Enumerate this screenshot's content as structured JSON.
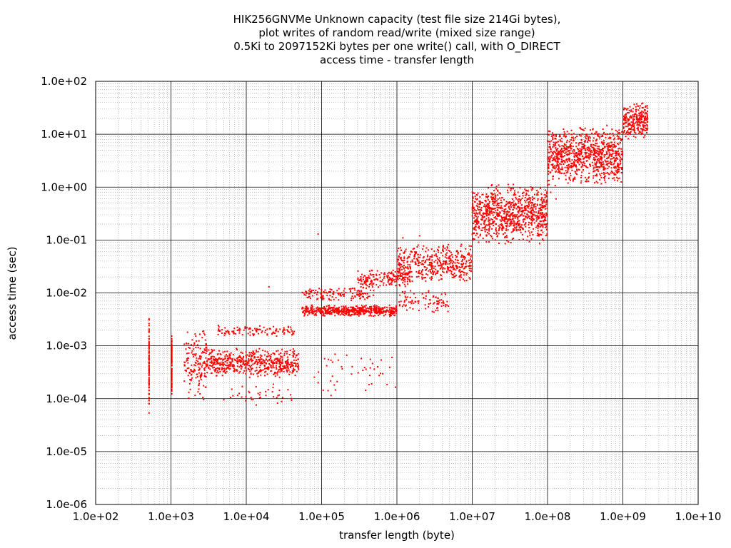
{
  "chart_data": {
    "type": "scatter",
    "title_lines": [
      "HIK256GNVMe Unknown capacity (test file size 214Gi bytes),",
      "plot writes of random read/write (mixed size range)",
      "0.5Ki to 2097152Ki bytes per one write() call, with O_DIRECT",
      "access time - transfer length"
    ],
    "xlabel": "transfer length (byte)",
    "ylabel": "access time (sec)",
    "x_scale": "log",
    "y_scale": "log",
    "xlim": [
      100,
      10000000000
    ],
    "ylim": [
      1e-06,
      100
    ],
    "x_ticks": [
      {
        "value": 100,
        "label": "1.0e+02"
      },
      {
        "value": 1000,
        "label": "1.0e+03"
      },
      {
        "value": 10000,
        "label": "1.0e+04"
      },
      {
        "value": 100000,
        "label": "1.0e+05"
      },
      {
        "value": 1000000,
        "label": "1.0e+06"
      },
      {
        "value": 10000000,
        "label": "1.0e+07"
      },
      {
        "value": 100000000,
        "label": "1.0e+08"
      },
      {
        "value": 1000000000,
        "label": "1.0e+09"
      },
      {
        "value": 10000000000,
        "label": "1.0e+10"
      }
    ],
    "y_ticks": [
      {
        "value": 100,
        "label": "1.0e+02"
      },
      {
        "value": 10,
        "label": "1.0e+01"
      },
      {
        "value": 1,
        "label": "1.0e+00"
      },
      {
        "value": 0.1,
        "label": "1.0e-01"
      },
      {
        "value": 0.01,
        "label": "1.0e-02"
      },
      {
        "value": 0.001,
        "label": "1.0e-03"
      },
      {
        "value": 0.0001,
        "label": "1.0e-04"
      },
      {
        "value": 1e-05,
        "label": "1.0e-05"
      },
      {
        "value": 1e-06,
        "label": "1.0e-06"
      }
    ],
    "grid": true,
    "point_color": "#ff0000",
    "clusters": [
      {
        "x_min": 512,
        "x_max": 512,
        "y_min": 5e-05,
        "y_max": 0.004,
        "count": 90
      },
      {
        "x_min": 1024,
        "x_max": 1024,
        "y_min": 9e-05,
        "y_max": 0.0024,
        "count": 90
      },
      {
        "x_min": 1500,
        "x_max": 3000,
        "y_min": 9e-05,
        "y_max": 0.0024,
        "count": 160
      },
      {
        "x_min": 3000,
        "x_max": 50000,
        "y_min": 0.00025,
        "y_max": 0.0009,
        "count": 560
      },
      {
        "x_min": 4000,
        "x_max": 45000,
        "y_min": 0.0015,
        "y_max": 0.0025,
        "count": 110
      },
      {
        "x_min": 5000,
        "x_max": 45000,
        "y_min": 7e-05,
        "y_max": 0.0002,
        "count": 40
      },
      {
        "x_min": 55000,
        "x_max": 1000000,
        "y_min": 0.0035,
        "y_max": 0.006,
        "count": 540
      },
      {
        "x_min": 55000,
        "x_max": 500000,
        "y_min": 0.007,
        "y_max": 0.013,
        "count": 130
      },
      {
        "x_min": 80000,
        "x_max": 1000000,
        "y_min": 0.0001,
        "y_max": 0.001,
        "count": 45
      },
      {
        "x_min": 300000,
        "x_max": 1500000,
        "y_min": 0.012,
        "y_max": 0.03,
        "count": 180
      },
      {
        "x_min": 1000000,
        "x_max": 5000000,
        "y_min": 0.004,
        "y_max": 0.012,
        "count": 90
      },
      {
        "x_min": 1000000,
        "x_max": 10000000,
        "y_min": 0.015,
        "y_max": 0.09,
        "count": 450
      },
      {
        "x_min": 10000000,
        "x_max": 100000000,
        "y_min": 0.08,
        "y_max": 1.2,
        "count": 900
      },
      {
        "x_min": 100000000,
        "x_max": 1000000000,
        "y_min": 1.0,
        "y_max": 15,
        "count": 900
      },
      {
        "x_min": 1000000000,
        "x_max": 2147483648,
        "y_min": 8,
        "y_max": 40,
        "count": 260
      }
    ],
    "outliers": [
      {
        "x": 90000,
        "y": 0.13
      },
      {
        "x": 20000,
        "y": 0.013
      },
      {
        "x": 2000000,
        "y": 0.12
      },
      {
        "x": 1200000,
        "y": 0.11
      },
      {
        "x": 110000000,
        "y": 0.8
      },
      {
        "x": 130000000,
        "y": 0.6
      }
    ]
  }
}
